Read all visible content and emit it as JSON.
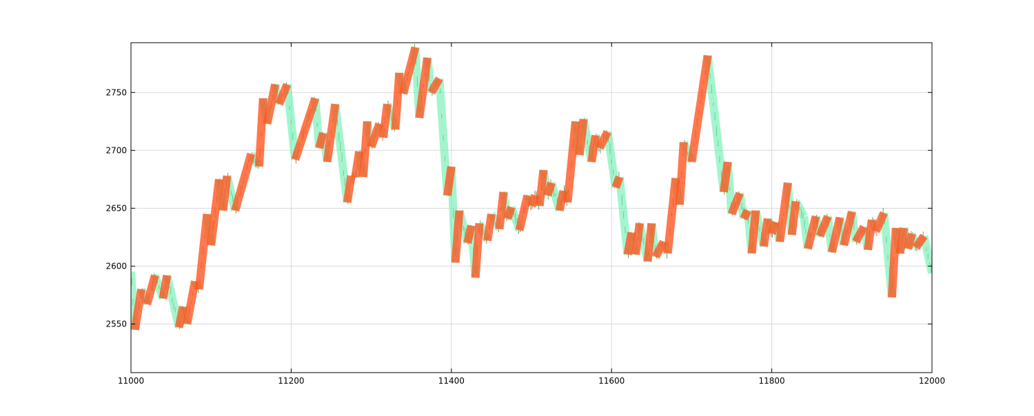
{
  "chart_data": {
    "type": "line",
    "title": "",
    "xlabel": "",
    "ylabel": "",
    "xlim": [
      11000,
      12000
    ],
    "ylim": [
      2508,
      2793
    ],
    "x_ticks": [
      11000,
      11200,
      11400,
      11600,
      11800,
      12000
    ],
    "y_ticks": [
      2550,
      2600,
      2650,
      2700,
      2750
    ],
    "grid": true,
    "legend": "none",
    "colors": {
      "up": "#ff5722",
      "down": "#69f0ae",
      "tick": "#2e7d32",
      "tick_alt": "#e53935"
    },
    "series": [
      {
        "style": "zigzag-segments",
        "points": [
          [
            11000,
            2595
          ],
          [
            11005,
            2545
          ],
          [
            11013,
            2580
          ],
          [
            11020,
            2567
          ],
          [
            11030,
            2592
          ],
          [
            11040,
            2572
          ],
          [
            11045,
            2592
          ],
          [
            11060,
            2547
          ],
          [
            11065,
            2565
          ],
          [
            11070,
            2550
          ],
          [
            11080,
            2587
          ],
          [
            11085,
            2580
          ],
          [
            11095,
            2645
          ],
          [
            11100,
            2618
          ],
          [
            11110,
            2675
          ],
          [
            11115,
            2648
          ],
          [
            11120,
            2678
          ],
          [
            11130,
            2648
          ],
          [
            11150,
            2697
          ],
          [
            11160,
            2686
          ],
          [
            11165,
            2745
          ],
          [
            11170,
            2723
          ],
          [
            11180,
            2757
          ],
          [
            11185,
            2740
          ],
          [
            11195,
            2757
          ],
          [
            11205,
            2692
          ],
          [
            11230,
            2745
          ],
          [
            11235,
            2702
          ],
          [
            11240,
            2715
          ],
          [
            11245,
            2690
          ],
          [
            11255,
            2740
          ],
          [
            11270,
            2655
          ],
          [
            11275,
            2678
          ],
          [
            11280,
            2677
          ],
          [
            11285,
            2699
          ],
          [
            11290,
            2677
          ],
          [
            11295,
            2725
          ],
          [
            11300,
            2703
          ],
          [
            11310,
            2723
          ],
          [
            11315,
            2711
          ],
          [
            11320,
            2740
          ],
          [
            11330,
            2718
          ],
          [
            11335,
            2767
          ],
          [
            11340,
            2749
          ],
          [
            11355,
            2789
          ],
          [
            11360,
            2728
          ],
          [
            11370,
            2780
          ],
          [
            11375,
            2750
          ],
          [
            11385,
            2762
          ],
          [
            11395,
            2661
          ],
          [
            11400,
            2686
          ],
          [
            11405,
            2603
          ],
          [
            11410,
            2648
          ],
          [
            11420,
            2620
          ],
          [
            11425,
            2635
          ],
          [
            11430,
            2590
          ],
          [
            11435,
            2637
          ],
          [
            11445,
            2622
          ],
          [
            11450,
            2645
          ],
          [
            11460,
            2632
          ],
          [
            11465,
            2664
          ],
          [
            11470,
            2641
          ],
          [
            11475,
            2651
          ],
          [
            11485,
            2631
          ],
          [
            11495,
            2661
          ],
          [
            11500,
            2652
          ],
          [
            11505,
            2661
          ],
          [
            11510,
            2652
          ],
          [
            11515,
            2683
          ],
          [
            11520,
            2661
          ],
          [
            11525,
            2672
          ],
          [
            11535,
            2648
          ],
          [
            11540,
            2665
          ],
          [
            11545,
            2655
          ],
          [
            11555,
            2725
          ],
          [
            11560,
            2696
          ],
          [
            11565,
            2727
          ],
          [
            11575,
            2690
          ],
          [
            11580,
            2713
          ],
          [
            11585,
            2702
          ],
          [
            11595,
            2716
          ],
          [
            11605,
            2668
          ],
          [
            11610,
            2677
          ],
          [
            11620,
            2610
          ],
          [
            11625,
            2629
          ],
          [
            11630,
            2610
          ],
          [
            11635,
            2637
          ],
          [
            11645,
            2604
          ],
          [
            11650,
            2637
          ],
          [
            11655,
            2608
          ],
          [
            11665,
            2621
          ],
          [
            11670,
            2611
          ],
          [
            11680,
            2676
          ],
          [
            11685,
            2653
          ],
          [
            11690,
            2707
          ],
          [
            11700,
            2690
          ],
          [
            11720,
            2782
          ],
          [
            11740,
            2664
          ],
          [
            11745,
            2690
          ],
          [
            11750,
            2645
          ],
          [
            11760,
            2663
          ],
          [
            11765,
            2641
          ],
          [
            11770,
            2648
          ],
          [
            11775,
            2611
          ],
          [
            11780,
            2648
          ],
          [
            11790,
            2617
          ],
          [
            11795,
            2641
          ],
          [
            11800,
            2628
          ],
          [
            11805,
            2638
          ],
          [
            11810,
            2621
          ],
          [
            11820,
            2672
          ],
          [
            11825,
            2627
          ],
          [
            11830,
            2656
          ],
          [
            11840,
            2643
          ],
          [
            11845,
            2615
          ],
          [
            11855,
            2643
          ],
          [
            11860,
            2626
          ],
          [
            11870,
            2643
          ],
          [
            11875,
            2612
          ],
          [
            11885,
            2642
          ],
          [
            11890,
            2618
          ],
          [
            11900,
            2647
          ],
          [
            11905,
            2621
          ],
          [
            11915,
            2634
          ],
          [
            11920,
            2614
          ],
          [
            11925,
            2640
          ],
          [
            11930,
            2630
          ],
          [
            11940,
            2646
          ],
          [
            11950,
            2573
          ],
          [
            11955,
            2633
          ],
          [
            11960,
            2611
          ],
          [
            11965,
            2633
          ],
          [
            11970,
            2615
          ],
          [
            11975,
            2628
          ],
          [
            11980,
            2616
          ],
          [
            11990,
            2626
          ],
          [
            12000,
            2594
          ]
        ]
      }
    ]
  }
}
